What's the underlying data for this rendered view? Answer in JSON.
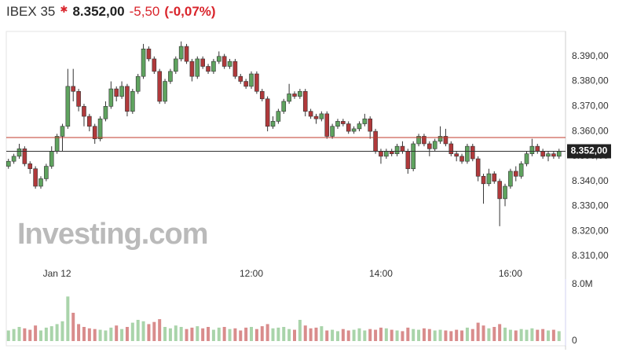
{
  "header": {
    "name": "IBEX 35",
    "price": "8.352,00",
    "change": "-5,50",
    "change_pct": "(-0,07%)"
  },
  "chart_data": {
    "type": "candlestick",
    "x": [
      495,
      500,
      505,
      510,
      515,
      520,
      525,
      530,
      535,
      540,
      545,
      550,
      555,
      560,
      565,
      570,
      575,
      580,
      585,
      590,
      595,
      600,
      605,
      610,
      615,
      620,
      625,
      630,
      635,
      640,
      645,
      650,
      655,
      660,
      665,
      670,
      675,
      680,
      685,
      690,
      695,
      700,
      705,
      710,
      715,
      720,
      725,
      730,
      735,
      740,
      745,
      750,
      755,
      760,
      765,
      770,
      775,
      780,
      785,
      790,
      795,
      800,
      805,
      810,
      815,
      820,
      825,
      830,
      835,
      840,
      845,
      850,
      855,
      860,
      865,
      870,
      875,
      880,
      885,
      890,
      895,
      900,
      905,
      910,
      915,
      920,
      925,
      930,
      935,
      940,
      945,
      950,
      955,
      960,
      965,
      970,
      975,
      980,
      985,
      990,
      995,
      1000,
      1005
    ],
    "open": [
      8346,
      8348,
      8350,
      8353,
      8347,
      8345,
      8338,
      8341,
      8346,
      8352,
      8358,
      8362,
      8378,
      8376,
      8370,
      8366,
      8362,
      8357,
      8365,
      8370,
      8377,
      8374,
      8378,
      8368,
      8376,
      8382,
      8393,
      8389,
      8384,
      8372,
      8380,
      8384,
      8389,
      8394,
      8388,
      8382,
      8389,
      8386,
      8384,
      8388,
      8390,
      8386,
      8388,
      8382,
      8380,
      8378,
      8383,
      8376,
      8373,
      8362,
      8364,
      8368,
      8372,
      8375,
      8374,
      8376,
      8368,
      8366,
      8365,
      8367,
      8358,
      8362,
      8364,
      8363,
      8360,
      8361,
      8363,
      8365,
      8360,
      8352,
      8350,
      8352,
      8351,
      8354,
      8352,
      8345,
      8355,
      8358,
      8355,
      8353,
      8356,
      8358,
      8355,
      8351,
      8350,
      8348,
      8354,
      8349,
      8342,
      8339,
      8343,
      8340,
      8333,
      8338,
      8344,
      8342,
      8347,
      8351,
      8354,
      8352,
      8350,
      8351,
      8350
    ],
    "high": [
      8349,
      8351,
      8355,
      8354,
      8348,
      8346,
      8342,
      8347,
      8354,
      8359,
      8363,
      8385,
      8385,
      8377,
      8371,
      8367,
      8363,
      8366,
      8372,
      8380,
      8378,
      8380,
      8379,
      8377,
      8383,
      8395,
      8394,
      8390,
      8385,
      8381,
      8385,
      8390,
      8396,
      8395,
      8389,
      8390,
      8390,
      8387,
      8389,
      8392,
      8391,
      8389,
      8389,
      8383,
      8381,
      8384,
      8384,
      8377,
      8374,
      8366,
      8369,
      8373,
      8379,
      8376,
      8377,
      8377,
      8369,
      8367,
      8368,
      8368,
      8363,
      8365,
      8365,
      8364,
      8362,
      8364,
      8367,
      8366,
      8361,
      8353,
      8353,
      8353,
      8355,
      8356,
      8353,
      8356,
      8359,
      8359,
      8356,
      8357,
      8362,
      8361,
      8356,
      8352,
      8351,
      8355,
      8355,
      8350,
      8343,
      8345,
      8344,
      8341,
      8339,
      8345,
      8346,
      8348,
      8352,
      8357,
      8355,
      8353,
      8352,
      8352,
      8353
    ],
    "low": [
      8345,
      8347,
      8349,
      8346,
      8343,
      8337,
      8337,
      8340,
      8345,
      8351,
      8352,
      8361,
      8372,
      8368,
      8362,
      8360,
      8355,
      8356,
      8364,
      8369,
      8372,
      8373,
      8366,
      8367,
      8375,
      8381,
      8388,
      8383,
      8371,
      8371,
      8379,
      8383,
      8388,
      8387,
      8380,
      8381,
      8385,
      8383,
      8383,
      8387,
      8385,
      8385,
      8381,
      8379,
      8377,
      8377,
      8375,
      8372,
      8360,
      8361,
      8363,
      8367,
      8371,
      8373,
      8373,
      8366,
      8365,
      8363,
      8364,
      8357,
      8357,
      8361,
      8362,
      8359,
      8359,
      8360,
      8362,
      8357,
      8351,
      8347,
      8349,
      8350,
      8350,
      8351,
      8343,
      8344,
      8354,
      8354,
      8350,
      8352,
      8355,
      8354,
      8350,
      8348,
      8347,
      8347,
      8348,
      8340,
      8331,
      8338,
      8339,
      8322,
      8330,
      8337,
      8340,
      8341,
      8346,
      8350,
      8351,
      8349,
      8348,
      8349,
      8349
    ],
    "close": [
      8348,
      8350,
      8353,
      8347,
      8345,
      8338,
      8341,
      8346,
      8352,
      8358,
      8362,
      8378,
      8376,
      8370,
      8366,
      8362,
      8357,
      8365,
      8370,
      8377,
      8374,
      8378,
      8368,
      8376,
      8382,
      8393,
      8389,
      8384,
      8372,
      8380,
      8384,
      8389,
      8394,
      8388,
      8382,
      8389,
      8386,
      8384,
      8388,
      8390,
      8386,
      8388,
      8382,
      8380,
      8378,
      8383,
      8376,
      8373,
      8362,
      8364,
      8368,
      8372,
      8375,
      8374,
      8376,
      8368,
      8366,
      8365,
      8367,
      8358,
      8362,
      8364,
      8363,
      8360,
      8361,
      8363,
      8365,
      8360,
      8352,
      8350,
      8352,
      8351,
      8354,
      8352,
      8345,
      8355,
      8358,
      8355,
      8353,
      8356,
      8358,
      8355,
      8351,
      8350,
      8348,
      8354,
      8349,
      8342,
      8339,
      8343,
      8340,
      8333,
      8338,
      8344,
      8342,
      8347,
      8351,
      8354,
      8352,
      8350,
      8351,
      8350,
      8352
    ],
    "volume": [
      1500000,
      1700000,
      2000000,
      1800000,
      1600000,
      2200000,
      1500000,
      1900000,
      2100000,
      2400000,
      2800000,
      6300000,
      4000000,
      2400000,
      2000000,
      1800000,
      1700000,
      1600000,
      1500000,
      1900000,
      2200000,
      1700000,
      2000000,
      2600000,
      3000000,
      2800000,
      2400000,
      2700000,
      3100000,
      2000000,
      1800000,
      2200000,
      2000000,
      1700000,
      1900000,
      2100000,
      1800000,
      2000000,
      1600000,
      1900000,
      2000000,
      1700000,
      1800000,
      1500000,
      1900000,
      2000000,
      1700000,
      2100000,
      2400000,
      1800000,
      1900000,
      2000000,
      1700000,
      1600000,
      3000000,
      2200000,
      1800000,
      1900000,
      2100000,
      1500000,
      1600000,
      1400000,
      1700000,
      1500000,
      1600000,
      1800000,
      1500000,
      1700000,
      1600000,
      1900000,
      1800000,
      1600000,
      1500000,
      1400000,
      1900000,
      1700000,
      1600000,
      1800000,
      1700000,
      1500000,
      1600000,
      1500000,
      1400000,
      1600000,
      1500000,
      1900000,
      1700000,
      2600000,
      2200000,
      1800000,
      2000000,
      2400000,
      1900000,
      1600000,
      1500000,
      1700000,
      1600000,
      1800000,
      1600000,
      1700000,
      1500000,
      1600000,
      1400000
    ],
    "up_color": "#5fa35f",
    "down_color": "#b0393b",
    "volume_up_color": "#a9d4aa",
    "volume_down_color": "#d98c8c",
    "xlim": [
      493,
      1011
    ],
    "xticks": [
      {
        "value": 540,
        "label": "Jan 12"
      },
      {
        "value": 720,
        "label": "12:00"
      },
      {
        "value": 840,
        "label": "14:00"
      },
      {
        "value": 960,
        "label": "16:00"
      }
    ],
    "ylim": [
      8304,
      8400
    ],
    "yticks": [
      {
        "value": 8310,
        "label": "8.310,00"
      },
      {
        "value": 8320,
        "label": "8.320,00"
      },
      {
        "value": 8330,
        "label": "8.330,00"
      },
      {
        "value": 8340,
        "label": "8.340,00"
      },
      {
        "value": 8350,
        "label": "8.350,00"
      },
      {
        "value": 8360,
        "label": "8.360,00"
      },
      {
        "value": 8370,
        "label": "8.370,00"
      },
      {
        "value": 8380,
        "label": "8.380,00"
      },
      {
        "value": 8390,
        "label": "8.390,00"
      }
    ],
    "volume_ylim": [
      0,
      8000000
    ],
    "volume_yticks": [
      0,
      {
        "value": 8000000,
        "label": "8.0M"
      }
    ],
    "reference_line": {
      "value": 8357.5,
      "color": "#c0392b"
    },
    "last_price": {
      "value": 8352,
      "label": "8.352,00"
    },
    "watermark": "Investing.com"
  }
}
